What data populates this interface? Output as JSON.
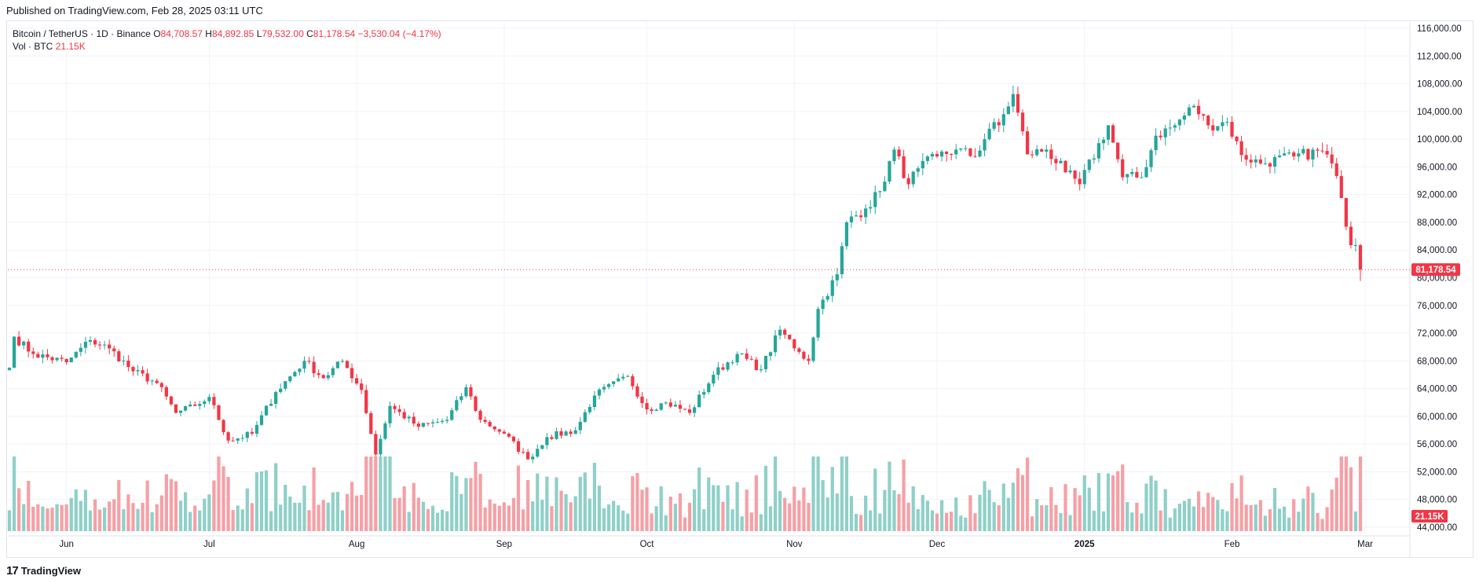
{
  "header": {
    "published_text": "Published on TradingView.com, Feb 28, 2025 03:11 UTC"
  },
  "legend": {
    "symbol": "Bitcoin / TetherUS · 1D · Binance",
    "open_label": "O",
    "open": "84,708.57",
    "high_label": "H",
    "high": "84,892.85",
    "low_label": "L",
    "low": "79,532.00",
    "close_label": "C",
    "close": "81,178.54",
    "change": "−3,530.04 (−4.17%)",
    "vol_label": "Vol · BTC",
    "vol_value": "21.15K"
  },
  "footer": {
    "logo_text": "TradingView",
    "logo_mark": "17"
  },
  "colors": {
    "up": "#26a69a",
    "down": "#f23645",
    "up_vol": "#8fd0c8",
    "down_vol": "#f5a0a6",
    "grid": "#f0f3fa",
    "axis_text": "#131722"
  },
  "chart_data": {
    "type": "candlestick",
    "symbol": "Bitcoin / TetherUS",
    "interval": "1D",
    "exchange": "Binance",
    "y_axis": {
      "ticks": [
        "116,000.00",
        "112,000.00",
        "108,000.00",
        "104,000.00",
        "100,000.00",
        "96,000.00",
        "92,000.00",
        "88,000.00",
        "84,000.00",
        "80,000.00",
        "76,000.00",
        "72,000.00",
        "68,000.00",
        "64,000.00",
        "60,000.00",
        "56,000.00",
        "52,000.00",
        "48,000.00",
        "44,000.00"
      ],
      "ylim": [
        43000,
        117000
      ]
    },
    "x_axis": {
      "labels": [
        "Jun",
        "Jul",
        "Aug",
        "Sep",
        "Oct",
        "Nov",
        "Dec",
        "2025",
        "Feb",
        "Mar"
      ]
    },
    "last_price": {
      "value": 81178.54,
      "label": "81,178.54"
    },
    "last_volume_label": "21.15K",
    "volume_max_btc": 80,
    "anchors": [
      [
        "2024-05-20",
        67000
      ],
      [
        "2024-05-21",
        71500
      ],
      [
        "2024-05-25",
        69000
      ],
      [
        "2024-06-01",
        67800
      ],
      [
        "2024-06-06",
        71000
      ],
      [
        "2024-06-10",
        69800
      ],
      [
        "2024-06-15",
        66500
      ],
      [
        "2024-06-20",
        64800
      ],
      [
        "2024-06-24",
        60500
      ],
      [
        "2024-06-28",
        61500
      ],
      [
        "2024-07-01",
        62800
      ],
      [
        "2024-07-05",
        56500
      ],
      [
        "2024-07-10",
        57500
      ],
      [
        "2024-07-15",
        63500
      ],
      [
        "2024-07-21",
        68000
      ],
      [
        "2024-07-25",
        65500
      ],
      [
        "2024-07-29",
        68000
      ],
      [
        "2024-08-02",
        63800
      ],
      [
        "2024-08-05",
        54500
      ],
      [
        "2024-08-08",
        61500
      ],
      [
        "2024-08-14",
        58500
      ],
      [
        "2024-08-20",
        59500
      ],
      [
        "2024-08-24",
        64200
      ],
      [
        "2024-08-27",
        59500
      ],
      [
        "2024-09-01",
        57500
      ],
      [
        "2024-09-06",
        53800
      ],
      [
        "2024-09-10",
        57000
      ],
      [
        "2024-09-16",
        58000
      ],
      [
        "2024-09-20",
        63000
      ],
      [
        "2024-09-27",
        65800
      ],
      [
        "2024-10-01",
        61000
      ],
      [
        "2024-10-05",
        62000
      ],
      [
        "2024-10-10",
        60500
      ],
      [
        "2024-10-15",
        66000
      ],
      [
        "2024-10-20",
        69000
      ],
      [
        "2024-10-25",
        66800
      ],
      [
        "2024-10-29",
        72500
      ],
      [
        "2024-11-02",
        69300
      ],
      [
        "2024-11-04",
        68000
      ],
      [
        "2024-11-06",
        75500
      ],
      [
        "2024-11-10",
        80500
      ],
      [
        "2024-11-12",
        88000
      ],
      [
        "2024-11-16",
        90000
      ],
      [
        "2024-11-19",
        92500
      ],
      [
        "2024-11-22",
        98500
      ],
      [
        "2024-11-25",
        93500
      ],
      [
        "2024-11-27",
        95800
      ],
      [
        "2024-12-01",
        97500
      ],
      [
        "2024-12-05",
        98500
      ],
      [
        "2024-12-09",
        97500
      ],
      [
        "2024-12-12",
        101500
      ],
      [
        "2024-12-14",
        102000
      ],
      [
        "2024-12-17",
        106500
      ],
      [
        "2024-12-20",
        97800
      ],
      [
        "2024-12-24",
        98500
      ],
      [
        "2024-12-28",
        95200
      ],
      [
        "2024-12-31",
        93500
      ],
      [
        "2025-01-06",
        102000
      ],
      [
        "2025-01-09",
        94500
      ],
      [
        "2025-01-13",
        94500
      ],
      [
        "2025-01-16",
        100500
      ],
      [
        "2025-01-20",
        102000
      ],
      [
        "2025-01-24",
        104800
      ],
      [
        "2025-01-27",
        102000
      ],
      [
        "2025-01-31",
        102500
      ],
      [
        "2025-02-03",
        97700
      ],
      [
        "2025-02-07",
        96500
      ],
      [
        "2025-02-14",
        97500
      ],
      [
        "2025-02-20",
        98300
      ],
      [
        "2025-02-22",
        96500
      ],
      [
        "2025-02-24",
        91500
      ],
      [
        "2025-02-26",
        84700
      ],
      [
        "2025-02-27",
        84708.57
      ],
      [
        "2025-02-28",
        81178.54
      ]
    ],
    "ohlc_last": {
      "date": "2025-02-28",
      "open": 84708.57,
      "high": 84892.85,
      "low": 79532.0,
      "close": 81178.54
    },
    "grid": true
  }
}
